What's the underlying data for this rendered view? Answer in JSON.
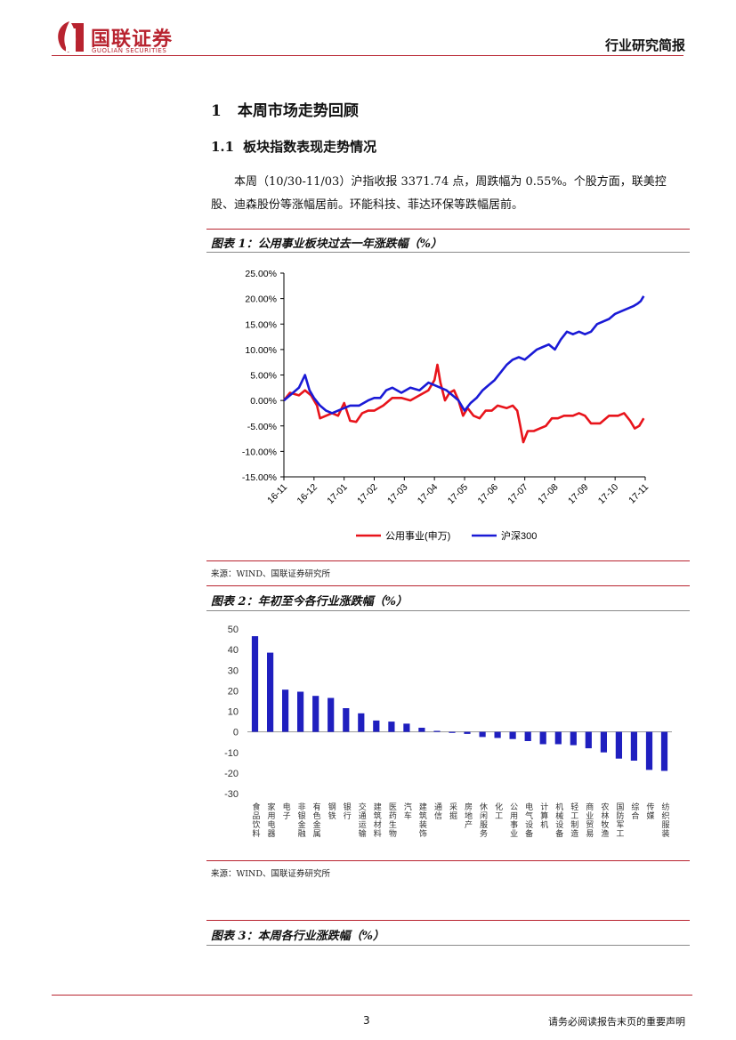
{
  "header": {
    "logo_cn": "国联证券",
    "logo_en": "GUOLIAN SECURITIES",
    "doc_type": "行业研究简报",
    "brand_color": "#b8232f"
  },
  "section": {
    "h1_num": "1",
    "h1_title": "本周市场走势回顾",
    "h2_num": "1.1",
    "h2_title": "板块指数表现走势情况",
    "para_line1": "本周（10/30-11/03）沪指收报 3371.74 点，周跌幅为 0.55%。个股方面，联美控",
    "para_line2": "股、迪森股份等涨幅居前。环能科技、菲达环保等跌幅居前。"
  },
  "figures": {
    "fig1_title": "图表 1：公用事业板块过去一年涨跌幅（%）",
    "fig1_source": "来源：WIND、国联证券研究所",
    "fig2_title": "图表 2：年初至今各行业涨跌幅（%）",
    "fig2_source": "来源：WIND、国联证券研究所",
    "fig3_title": "图表 3：本周各行业涨跌幅（%）"
  },
  "footer": {
    "page_number": "3",
    "disclaimer": "请务必阅读报告末页的重要声明"
  },
  "chart_data": [
    {
      "type": "line",
      "x_ticks": [
        "16-11",
        "16-12",
        "17-01",
        "17-02",
        "17-03",
        "17-04",
        "17-05",
        "17-06",
        "17-07",
        "17-08",
        "17-09",
        "17-10",
        "17-11"
      ],
      "y_ticks": [
        "25.00%",
        "20.00%",
        "15.00%",
        "10.00%",
        "5.00%",
        "0.00%",
        "-5.00%",
        "-10.00%",
        "-15.00%"
      ],
      "ylim": [
        -15,
        25
      ],
      "legend_position": "bottom",
      "series": [
        {
          "name": "公用事业(申万)",
          "color": "#e8141b",
          "points": [
            [
              0,
              0
            ],
            [
              0.2,
              1.5
            ],
            [
              0.5,
              1
            ],
            [
              0.7,
              2
            ],
            [
              0.9,
              1
            ],
            [
              1.1,
              -1
            ],
            [
              1.2,
              -3.5
            ],
            [
              1.4,
              -3
            ],
            [
              1.6,
              -2.5
            ],
            [
              1.8,
              -3
            ],
            [
              2,
              -0.5
            ],
            [
              2.2,
              -4
            ],
            [
              2.4,
              -4.2
            ],
            [
              2.6,
              -2.5
            ],
            [
              2.8,
              -2
            ],
            [
              3,
              -2
            ],
            [
              3.3,
              -1
            ],
            [
              3.6,
              0.5
            ],
            [
              3.9,
              0.5
            ],
            [
              4.2,
              0
            ],
            [
              4.5,
              1
            ],
            [
              4.8,
              2
            ],
            [
              5,
              4
            ],
            [
              5.1,
              7
            ],
            [
              5.2,
              3.5
            ],
            [
              5.35,
              0
            ],
            [
              5.5,
              1.5
            ],
            [
              5.65,
              2
            ],
            [
              5.8,
              0
            ],
            [
              5.95,
              -3
            ],
            [
              6.1,
              -1.5
            ],
            [
              6.3,
              -3
            ],
            [
              6.5,
              -3.5
            ],
            [
              6.7,
              -2
            ],
            [
              6.9,
              -2
            ],
            [
              7.1,
              -1
            ],
            [
              7.4,
              -1.5
            ],
            [
              7.6,
              -1
            ],
            [
              7.75,
              -2
            ],
            [
              7.85,
              -5
            ],
            [
              7.95,
              -8.2
            ],
            [
              8.1,
              -6
            ],
            [
              8.3,
              -6
            ],
            [
              8.5,
              -5.5
            ],
            [
              8.7,
              -5
            ],
            [
              8.9,
              -3.5
            ],
            [
              9.1,
              -3.5
            ],
            [
              9.3,
              -3
            ],
            [
              9.6,
              -3
            ],
            [
              9.8,
              -2.5
            ],
            [
              10,
              -3
            ],
            [
              10.2,
              -4.5
            ],
            [
              10.5,
              -4.5
            ],
            [
              10.8,
              -3
            ],
            [
              11.1,
              -3
            ],
            [
              11.3,
              -2.5
            ],
            [
              11.5,
              -4
            ],
            [
              11.65,
              -5.5
            ],
            [
              11.8,
              -5
            ],
            [
              11.95,
              -3.5
            ]
          ]
        },
        {
          "name": "沪深300",
          "color": "#1a1ad6",
          "points": [
            [
              0,
              0
            ],
            [
              0.3,
              1.5
            ],
            [
              0.5,
              2.5
            ],
            [
              0.7,
              5
            ],
            [
              0.85,
              2
            ],
            [
              1,
              0.5
            ],
            [
              1.2,
              -1
            ],
            [
              1.4,
              -2
            ],
            [
              1.6,
              -2.5
            ],
            [
              1.8,
              -2
            ],
            [
              2,
              -1.5
            ],
            [
              2.2,
              -1
            ],
            [
              2.5,
              -1
            ],
            [
              2.8,
              0
            ],
            [
              3,
              0.5
            ],
            [
              3.2,
              0.5
            ],
            [
              3.4,
              2
            ],
            [
              3.6,
              2.5
            ],
            [
              3.9,
              1.5
            ],
            [
              4.2,
              2.5
            ],
            [
              4.5,
              2
            ],
            [
              4.8,
              3.5
            ],
            [
              5,
              3
            ],
            [
              5.2,
              2.5
            ],
            [
              5.4,
              2
            ],
            [
              5.6,
              1
            ],
            [
              5.8,
              0
            ],
            [
              6,
              -2
            ],
            [
              6.2,
              -0.5
            ],
            [
              6.4,
              0.5
            ],
            [
              6.6,
              2
            ],
            [
              6.8,
              3
            ],
            [
              7,
              4
            ],
            [
              7.2,
              5.5
            ],
            [
              7.4,
              7
            ],
            [
              7.6,
              8
            ],
            [
              7.8,
              8.5
            ],
            [
              8,
              8
            ],
            [
              8.2,
              9
            ],
            [
              8.4,
              10
            ],
            [
              8.6,
              10.5
            ],
            [
              8.8,
              11
            ],
            [
              9,
              10
            ],
            [
              9.2,
              12
            ],
            [
              9.4,
              13.5
            ],
            [
              9.6,
              13
            ],
            [
              9.8,
              13.5
            ],
            [
              10,
              13
            ],
            [
              10.2,
              13.5
            ],
            [
              10.4,
              15
            ],
            [
              10.6,
              15.5
            ],
            [
              10.8,
              16
            ],
            [
              11,
              17
            ],
            [
              11.2,
              17.5
            ],
            [
              11.4,
              18
            ],
            [
              11.6,
              18.5
            ],
            [
              11.75,
              19
            ],
            [
              11.85,
              19.5
            ],
            [
              11.95,
              20.5
            ]
          ]
        }
      ]
    },
    {
      "type": "bar",
      "color": "#1f1fbf",
      "y_ticks": [
        "50",
        "40",
        "30",
        "20",
        "10",
        "0",
        "-10",
        "-20",
        "-30"
      ],
      "ylim": [
        -30,
        50
      ],
      "categories": [
        "食品饮料",
        "家用电器",
        "电子",
        "非银金融",
        "有色金属",
        "钢铁",
        "银行",
        "交通运输",
        "建筑材料",
        "医药生物",
        "汽车",
        "建筑装饰",
        "通信",
        "采掘",
        "房地产",
        "休闲服务",
        "化工",
        "公用事业",
        "电气设备",
        "计算机",
        "机械设备",
        "轻工制造",
        "商业贸易",
        "农林牧渔",
        "国防军工",
        "综合",
        "传媒",
        "纺织服装"
      ],
      "values": [
        46.5,
        38.5,
        20.5,
        19.5,
        17.5,
        16.5,
        11.5,
        9,
        5.5,
        5,
        4,
        2,
        0.5,
        -0.5,
        -1,
        -2.5,
        -3,
        -3.5,
        -4.5,
        -6,
        -6,
        -6.5,
        -8,
        -10,
        -13,
        -14,
        -18.5,
        -19
      ]
    }
  ]
}
